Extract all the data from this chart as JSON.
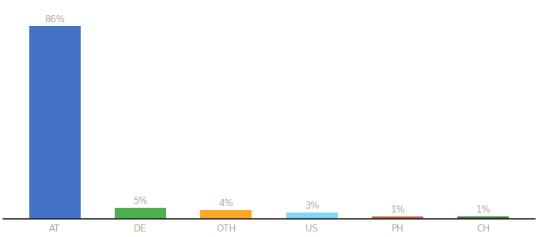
{
  "categories": [
    "AT",
    "DE",
    "OTH",
    "US",
    "PH",
    "CH"
  ],
  "values": [
    86,
    5,
    4,
    3,
    1,
    1
  ],
  "bar_colors": [
    "#4472c4",
    "#4caf50",
    "#ffa726",
    "#81d4fa",
    "#bf6040",
    "#2e7d32"
  ],
  "label_format": "{}%",
  "background_color": "#ffffff",
  "label_color": "#b0a898",
  "tick_color": "#b0a898",
  "ylim": [
    0,
    96
  ],
  "bar_width": 0.6,
  "label_fontsize": 8.5,
  "tick_fontsize": 8.5,
  "figsize": [
    6.8,
    3.0
  ],
  "dpi": 100
}
